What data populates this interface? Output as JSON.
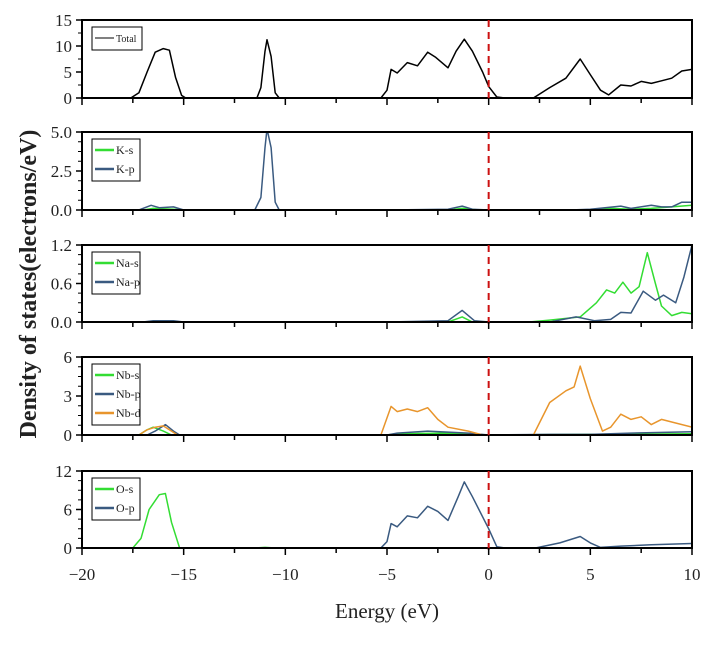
{
  "chart_data": {
    "type": "line",
    "ylabel": "Density of states(electrons/eV)",
    "xlabel": "Energy (eV)",
    "xlim": [
      -20,
      10
    ],
    "x_ticks": [
      "-20",
      "-15",
      "-10",
      "-5",
      "0",
      "5",
      "10"
    ],
    "fermi_level": 0,
    "fermi_color": "#cc1111",
    "panels": [
      {
        "ylim": [
          0,
          15
        ],
        "y_ticks": [
          "0",
          "5",
          "10",
          "15"
        ],
        "series": [
          {
            "name": "Total",
            "color": "#000000",
            "points": [
              [
                -20,
                0
              ],
              [
                -17.6,
                0
              ],
              [
                -17.2,
                1
              ],
              [
                -16.8,
                5
              ],
              [
                -16.4,
                8.8
              ],
              [
                -16.0,
                9.5
              ],
              [
                -15.7,
                9.2
              ],
              [
                -15.4,
                4
              ],
              [
                -15.1,
                0.5
              ],
              [
                -14.9,
                0
              ],
              [
                -11.4,
                0
              ],
              [
                -11.2,
                2
              ],
              [
                -11.0,
                9
              ],
              [
                -10.9,
                11.2
              ],
              [
                -10.7,
                8
              ],
              [
                -10.5,
                1
              ],
              [
                -10.3,
                0
              ],
              [
                -5.3,
                0
              ],
              [
                -5.0,
                1.5
              ],
              [
                -4.8,
                5.5
              ],
              [
                -4.5,
                4.8
              ],
              [
                -4.0,
                6.8
              ],
              [
                -3.5,
                6.2
              ],
              [
                -3.0,
                8.8
              ],
              [
                -2.6,
                7.8
              ],
              [
                -2.0,
                5.8
              ],
              [
                -1.6,
                9
              ],
              [
                -1.2,
                11.3
              ],
              [
                -0.8,
                9
              ],
              [
                -0.3,
                5
              ],
              [
                0,
                2.2
              ],
              [
                0.4,
                0.2
              ],
              [
                0.8,
                0
              ],
              [
                2.2,
                0
              ],
              [
                3.0,
                2
              ],
              [
                3.8,
                3.8
              ],
              [
                4.5,
                7.5
              ],
              [
                5.0,
                4.5
              ],
              [
                5.5,
                1.5
              ],
              [
                5.9,
                0.6
              ],
              [
                6.5,
                2.5
              ],
              [
                7.0,
                2.3
              ],
              [
                7.5,
                3.2
              ],
              [
                8.0,
                2.8
              ],
              [
                8.5,
                3.3
              ],
              [
                9.0,
                3.8
              ],
              [
                9.5,
                5.2
              ],
              [
                10,
                5.5
              ]
            ]
          }
        ]
      },
      {
        "ylim": [
          0,
          5
        ],
        "y_ticks": [
          "0.0",
          "2.5",
          "5.0"
        ],
        "series": [
          {
            "name": "K-s",
            "color": "#33dd33",
            "points": [
              [
                -20,
                0
              ],
              [
                -17,
                0
              ],
              [
                -16.5,
                0.1
              ],
              [
                -15.5,
                0.05
              ],
              [
                -15,
                0
              ],
              [
                -2,
                0
              ],
              [
                -1.3,
                0.1
              ],
              [
                -0.5,
                0
              ],
              [
                5,
                0
              ],
              [
                6,
                0.1
              ],
              [
                7,
                0.05
              ],
              [
                8,
                0.1
              ],
              [
                9,
                0.2
              ],
              [
                10,
                0.3
              ]
            ]
          },
          {
            "name": "K-p",
            "color": "#3a5a80",
            "points": [
              [
                -20,
                0
              ],
              [
                -17.2,
                0
              ],
              [
                -16.6,
                0.3
              ],
              [
                -16.2,
                0.15
              ],
              [
                -15.5,
                0.2
              ],
              [
                -15,
                0
              ],
              [
                -11.5,
                0
              ],
              [
                -11.2,
                0.8
              ],
              [
                -11.0,
                4
              ],
              [
                -10.9,
                5.2
              ],
              [
                -10.7,
                4
              ],
              [
                -10.5,
                0.5
              ],
              [
                -10.3,
                0
              ],
              [
                -5,
                0
              ],
              [
                -2,
                0.05
              ],
              [
                -1.3,
                0.25
              ],
              [
                -0.8,
                0.05
              ],
              [
                0,
                0
              ],
              [
                4,
                0
              ],
              [
                5,
                0.05
              ],
              [
                6.5,
                0.25
              ],
              [
                7,
                0.1
              ],
              [
                8,
                0.3
              ],
              [
                8.5,
                0.2
              ],
              [
                9,
                0.2
              ],
              [
                9.5,
                0.5
              ],
              [
                10,
                0.5
              ]
            ]
          }
        ]
      },
      {
        "ylim": [
          0,
          1.2
        ],
        "y_ticks": [
          "0.0",
          "0.6",
          "1.2"
        ],
        "series": [
          {
            "name": "Na-s",
            "color": "#33dd33",
            "points": [
              [
                -20,
                0
              ],
              [
                -2,
                0
              ],
              [
                -1.3,
                0.08
              ],
              [
                -0.8,
                0
              ],
              [
                2,
                0
              ],
              [
                3,
                0.03
              ],
              [
                4.5,
                0.08
              ],
              [
                5.3,
                0.3
              ],
              [
                5.8,
                0.5
              ],
              [
                6.2,
                0.45
              ],
              [
                6.6,
                0.62
              ],
              [
                7.0,
                0.45
              ],
              [
                7.4,
                0.55
              ],
              [
                7.8,
                1.08
              ],
              [
                8.2,
                0.6
              ],
              [
                8.5,
                0.25
              ],
              [
                9.0,
                0.1
              ],
              [
                9.5,
                0.15
              ],
              [
                10,
                0.13
              ]
            ]
          },
          {
            "name": "Na-p",
            "color": "#3a5a80",
            "points": [
              [
                -20,
                0
              ],
              [
                -17,
                0
              ],
              [
                -16.5,
                0.02
              ],
              [
                -15.5,
                0.02
              ],
              [
                -15,
                0
              ],
              [
                -5,
                0
              ],
              [
                -2,
                0.02
              ],
              [
                -1.3,
                0.18
              ],
              [
                -0.7,
                0.02
              ],
              [
                0,
                0
              ],
              [
                3,
                0
              ],
              [
                4.3,
                0.08
              ],
              [
                5.2,
                0.02
              ],
              [
                6,
                0.04
              ],
              [
                6.5,
                0.15
              ],
              [
                7,
                0.14
              ],
              [
                7.6,
                0.48
              ],
              [
                8.2,
                0.34
              ],
              [
                8.6,
                0.42
              ],
              [
                9.2,
                0.3
              ],
              [
                9.6,
                0.7
              ],
              [
                10,
                1.2
              ]
            ]
          }
        ]
      },
      {
        "ylim": [
          0,
          6
        ],
        "y_ticks": [
          "0",
          "3",
          "6"
        ],
        "series": [
          {
            "name": "Nb-s",
            "color": "#33dd33",
            "points": [
              [
                -20,
                0
              ],
              [
                -17.2,
                0
              ],
              [
                -16.8,
                0.4
              ],
              [
                -16.5,
                0.6
              ],
              [
                -16,
                0.3
              ],
              [
                -15.6,
                0
              ],
              [
                -5,
                0
              ],
              [
                -4.5,
                0.1
              ],
              [
                -2,
                0.15
              ],
              [
                0,
                0
              ],
              [
                10,
                0.1
              ]
            ]
          },
          {
            "name": "Nb-p",
            "color": "#3a5a80",
            "points": [
              [
                -20,
                0
              ],
              [
                -16.8,
                0
              ],
              [
                -16.4,
                0.3
              ],
              [
                -15.9,
                0.8
              ],
              [
                -15.5,
                0.3
              ],
              [
                -15.2,
                0
              ],
              [
                -5,
                0
              ],
              [
                -4.5,
                0.15
              ],
              [
                -3,
                0.3
              ],
              [
                -1,
                0.15
              ],
              [
                0,
                0
              ],
              [
                3,
                0.05
              ],
              [
                5,
                0.05
              ],
              [
                7,
                0.15
              ],
              [
                10,
                0.25
              ]
            ]
          },
          {
            "name": "Nb-d",
            "color": "#e8952c",
            "points": [
              [
                -20,
                0
              ],
              [
                -17.2,
                0
              ],
              [
                -16.8,
                0.4
              ],
              [
                -16.4,
                0.6
              ],
              [
                -16.0,
                0.7
              ],
              [
                -15.6,
                0.3
              ],
              [
                -15.3,
                0
              ],
              [
                -5.3,
                0
              ],
              [
                -4.8,
                2.2
              ],
              [
                -4.5,
                1.8
              ],
              [
                -4.0,
                2.0
              ],
              [
                -3.5,
                1.8
              ],
              [
                -3.0,
                2.1
              ],
              [
                -2.5,
                1.2
              ],
              [
                -2.0,
                0.6
              ],
              [
                -1.0,
                0.3
              ],
              [
                -0.3,
                0
              ],
              [
                2.2,
                0
              ],
              [
                3.0,
                2.5
              ],
              [
                3.8,
                3.4
              ],
              [
                4.2,
                3.7
              ],
              [
                4.5,
                5.3
              ],
              [
                5.0,
                2.8
              ],
              [
                5.6,
                0.3
              ],
              [
                6.0,
                0.6
              ],
              [
                6.5,
                1.6
              ],
              [
                7.0,
                1.2
              ],
              [
                7.5,
                1.4
              ],
              [
                8.0,
                0.8
              ],
              [
                8.5,
                1.2
              ],
              [
                9.0,
                1.0
              ],
              [
                10,
                0.6
              ]
            ]
          }
        ]
      },
      {
        "ylim": [
          0,
          12
        ],
        "y_ticks": [
          "0",
          "6",
          "12"
        ],
        "series": [
          {
            "name": "O-s",
            "color": "#33dd33",
            "points": [
              [
                -20,
                0
              ],
              [
                -17.5,
                0
              ],
              [
                -17.1,
                1.5
              ],
              [
                -16.7,
                6
              ],
              [
                -16.2,
                8.3
              ],
              [
                -15.9,
                8.5
              ],
              [
                -15.6,
                4
              ],
              [
                -15.2,
                0
              ],
              [
                -11.5,
                0
              ],
              [
                -11,
                0.1
              ],
              [
                -10.5,
                0
              ],
              [
                10,
                0
              ]
            ]
          },
          {
            "name": "O-p",
            "color": "#3a5a80",
            "points": [
              [
                -20,
                0
              ],
              [
                -5.3,
                0
              ],
              [
                -5.0,
                1
              ],
              [
                -4.8,
                3.8
              ],
              [
                -4.5,
                3.3
              ],
              [
                -4.0,
                5
              ],
              [
                -3.5,
                4.7
              ],
              [
                -3.0,
                6.5
              ],
              [
                -2.5,
                5.7
              ],
              [
                -2.0,
                4.3
              ],
              [
                -1.5,
                8
              ],
              [
                -1.2,
                10.3
              ],
              [
                -0.8,
                8
              ],
              [
                0,
                3
              ],
              [
                0.4,
                0.2
              ],
              [
                0.8,
                0
              ],
              [
                2.3,
                0
              ],
              [
                3.5,
                0.8
              ],
              [
                4.5,
                1.8
              ],
              [
                5.0,
                0.8
              ],
              [
                5.5,
                0.1
              ],
              [
                6.5,
                0.3
              ],
              [
                8,
                0.5
              ],
              [
                10,
                0.7
              ]
            ]
          }
        ]
      }
    ]
  }
}
